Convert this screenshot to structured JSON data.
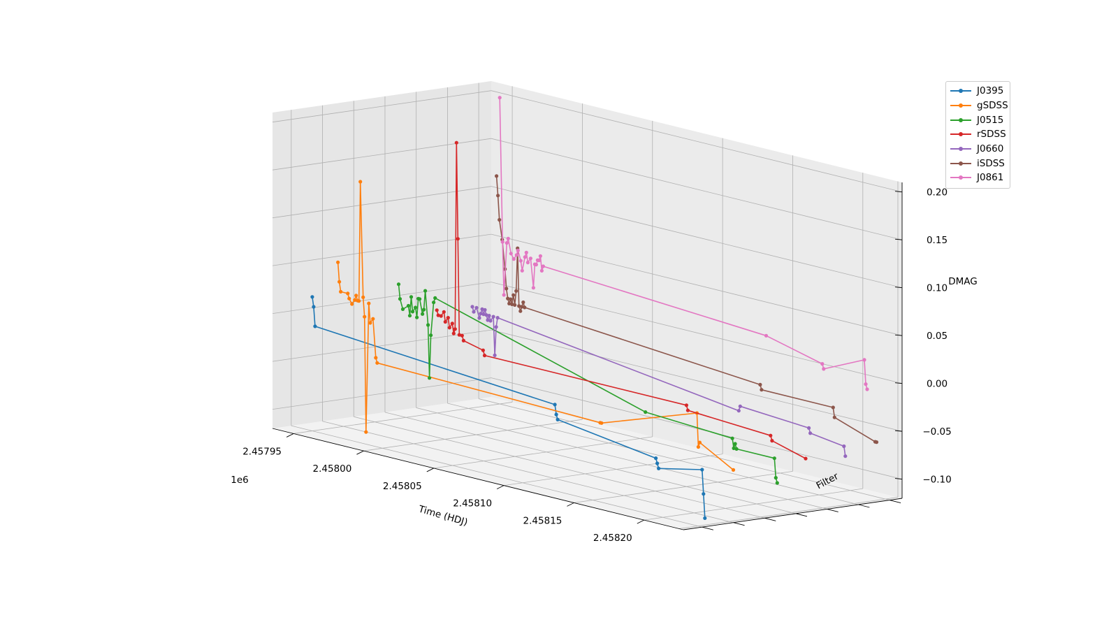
{
  "chart_data": {
    "type": "line",
    "subtype": "3d-line",
    "title": "",
    "xlabel": "Time (HDJ)",
    "ylabel": "Filter",
    "zlabel": "DMAG",
    "x_offset_label": "1e6",
    "x_tick_labels": [
      "2.45795",
      "2.45800",
      "2.45805",
      "2.45810",
      "2.45815",
      "2.45820"
    ],
    "y_tick_labels": [],
    "z_tick_labels": [
      "−0.10",
      "−0.05",
      "0.00",
      "0.05",
      "0.10",
      "0.15",
      "0.20"
    ],
    "xlim": [
      2457935,
      2458228
    ],
    "ylim": [
      0,
      7
    ],
    "zlim": [
      -0.12,
      0.21
    ],
    "grid": true,
    "legend_position": "top-right",
    "series": [
      {
        "name": "J0395",
        "filter_index": 0,
        "color": "#1f77b4",
        "x": [
          2457950,
          2457951,
          2457952,
          2458123,
          2458124,
          2458125,
          2458195,
          2458196,
          2458197,
          2458228,
          2458229,
          2458230
        ],
        "z": [
          0.02,
          0.01,
          -0.01,
          -0.03,
          -0.04,
          -0.045,
          -0.06,
          -0.065,
          -0.07,
          -0.06,
          -0.085,
          -0.11
        ]
      },
      {
        "name": "gSDSS",
        "filter_index": 1,
        "color": "#ff7f0e",
        "x": [
          2457946,
          2457947,
          2457948,
          2457953,
          2457954,
          2457956,
          2457958,
          2457959,
          2457960,
          2457961,
          2457962,
          2457964,
          2457965,
          2457966,
          2457968,
          2457969,
          2457971,
          2457973,
          2457974,
          2458133,
          2458134,
          2458202,
          2458203,
          2458204,
          2458228
        ],
        "z": [
          0.05,
          0.03,
          0.02,
          0.02,
          0.015,
          0.01,
          0.015,
          0.02,
          0.015,
          0.015,
          0.14,
          0.02,
          -0.0,
          -0.12,
          0.015,
          -0.005,
          0.0,
          -0.04,
          -0.045,
          -0.05,
          -0.05,
          -0.015,
          -0.05,
          -0.045,
          -0.065
        ]
      },
      {
        "name": "J0515",
        "filter_index": 2,
        "color": "#2ca02c",
        "x": [
          2457967,
          2457968,
          2457970,
          2457974,
          2457975,
          2457976,
          2457977,
          2457979,
          2457980,
          2457981,
          2457982,
          2457984,
          2457985,
          2457986,
          2457988,
          2457989,
          2457990,
          2457992,
          2457993,
          2458143,
          2458205,
          2458206,
          2458207,
          2458208,
          2458235,
          2458236,
          2458237
        ],
        "z": [
          0.03,
          0.015,
          0.005,
          0.01,
          0.0,
          0.02,
          0.005,
          0.01,
          0.0,
          0.02,
          0.02,
          0.005,
          0.01,
          0.03,
          -0.005,
          -0.06,
          -0.015,
          0.02,
          0.025,
          -0.04,
          -0.045,
          -0.055,
          -0.05,
          -0.055,
          -0.055,
          -0.075,
          -0.08
        ]
      },
      {
        "name": "rSDSS",
        "filter_index": 3,
        "color": "#d62728",
        "x": [
          2457972,
          2457973,
          2457975,
          2457977,
          2457978,
          2457980,
          2457981,
          2457983,
          2457984,
          2457985,
          2457986,
          2457987,
          2457988,
          2457990,
          2457991,
          2458005,
          2458006,
          2458150,
          2458151,
          2458210,
          2458211,
          2458235
        ],
        "z": [
          0.0,
          -0.005,
          -0.005,
          0.0,
          -0.01,
          -0.005,
          -0.015,
          -0.01,
          -0.02,
          -0.015,
          0.18,
          0.08,
          -0.02,
          -0.02,
          -0.025,
          -0.03,
          -0.035,
          -0.035,
          -0.04,
          -0.045,
          -0.05,
          -0.06
        ]
      },
      {
        "name": "J0660",
        "filter_index": 4,
        "color": "#9467bd",
        "x": [
          2457975,
          2457976,
          2457978,
          2457980,
          2457981,
          2457982,
          2457983,
          2457984,
          2457985,
          2457986,
          2457987,
          2457988,
          2457990,
          2457991,
          2457992,
          2457993,
          2458165,
          2458166,
          2458215,
          2458216,
          2458240,
          2458241
        ],
        "z": [
          0.0,
          -0.005,
          -0.0,
          -0.01,
          -0.005,
          0.0,
          -0.005,
          -0.0,
          -0.005,
          -0.01,
          -0.005,
          -0.01,
          -0.005,
          -0.045,
          -0.015,
          -0.005,
          -0.04,
          -0.035,
          -0.04,
          -0.045,
          -0.05,
          -0.06
        ]
      },
      {
        "name": "iSDSS",
        "filter_index": 5,
        "color": "#8c564b",
        "x": [
          2457970,
          2457971,
          2457972,
          2457974,
          2457976,
          2457977,
          2457978,
          2457979,
          2457980,
          2457981,
          2457982,
          2457983,
          2457984,
          2457985,
          2457986,
          2457987,
          2457988,
          2457989,
          2457990,
          2458158,
          2458159,
          2458210,
          2458211,
          2458240,
          2458241
        ],
        "z": [
          0.13,
          0.11,
          0.085,
          0.065,
          0.035,
          0.015,
          0.005,
          0.0,
          0.005,
          0.0,
          0.01,
          0.0,
          0.015,
          0.06,
          0.0,
          -0.005,
          0.0,
          0.005,
          0.0,
          -0.02,
          -0.025,
          -0.025,
          -0.035,
          -0.05,
          -0.05
        ]
      },
      {
        "name": "J0861",
        "filter_index": 6,
        "color": "#e377c2",
        "x": [
          2457950,
          2457952,
          2457953,
          2457955,
          2457956,
          2457958,
          2457960,
          2457962,
          2457963,
          2457965,
          2457966,
          2457968,
          2457969,
          2457970,
          2457972,
          2457974,
          2457975,
          2457976,
          2457977,
          2457978,
          2457979,
          2457980,
          2457981,
          2458140,
          2458180,
          2458181,
          2458210,
          2458211,
          2458212
        ],
        "z": [
          0.2,
          0.05,
          -0.005,
          0.05,
          0.055,
          0.04,
          0.035,
          0.04,
          0.045,
          0.035,
          0.025,
          0.04,
          0.045,
          0.035,
          0.04,
          0.01,
          0.035,
          0.035,
          0.04,
          0.04,
          0.045,
          0.03,
          0.035,
          0.02,
          0.005,
          0.0,
          0.02,
          -0.005,
          -0.01
        ]
      }
    ]
  }
}
